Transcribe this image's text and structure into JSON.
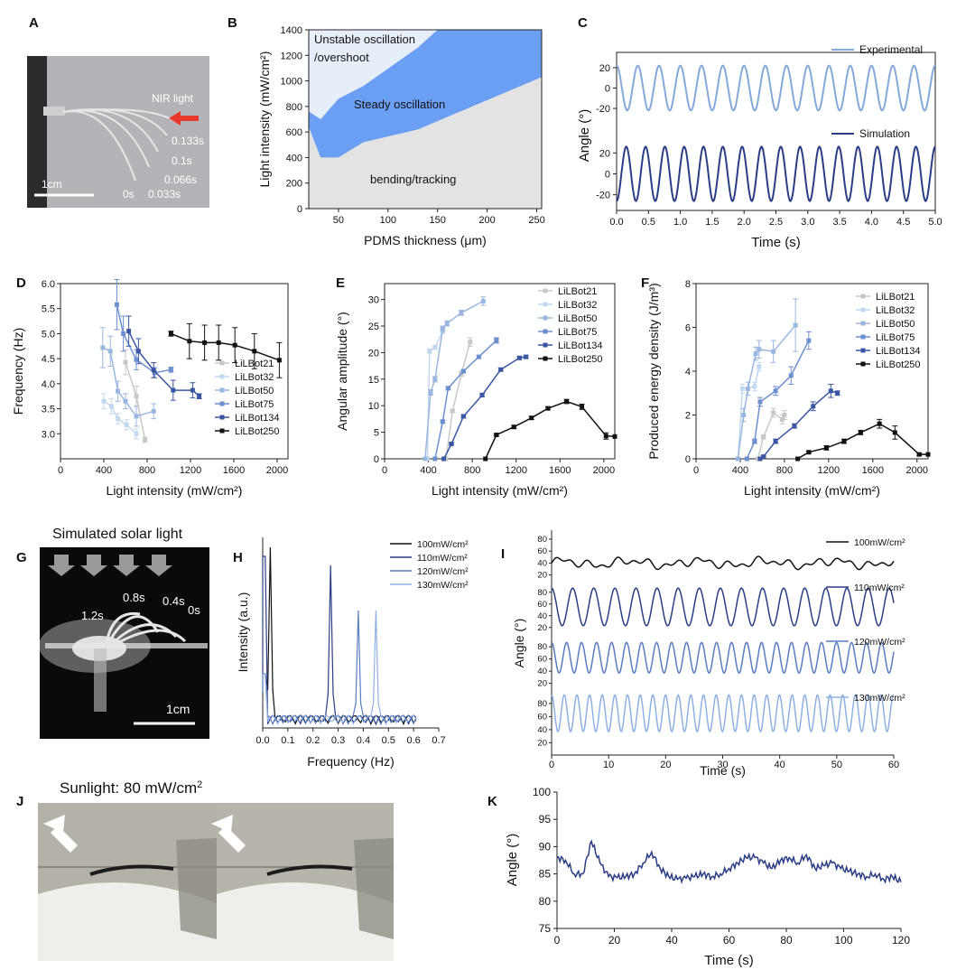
{
  "panel_letters": {
    "A": "A",
    "B": "B",
    "C": "C",
    "D": "D",
    "E": "E",
    "F": "F",
    "G": "G",
    "H": "H",
    "I": "I",
    "J": "J",
    "K": "K"
  },
  "photo_a": {
    "nir_label": "NIR light",
    "times": [
      "0.133s",
      "0.1s",
      "0.066s",
      "0s",
      "0.033s"
    ],
    "scale": "1cm"
  },
  "photo_g": {
    "title": "Simulated solar light",
    "times": [
      "1.2s",
      "0.8s",
      "0.4s",
      "0s"
    ],
    "scale": "1cm"
  },
  "photo_j": {
    "title": "Sunlight: 80 mW/cm2"
  },
  "colors": {
    "c21": "#c8c8c8",
    "c32": "#c2d8ef",
    "c50": "#9ab7e0",
    "c75": "#6b8fcf",
    "c134": "#3a56a2",
    "c250": "#111111",
    "steady": "#6b9ff3",
    "unstable": "#e6eef9",
    "bending": "#e3e3e3",
    "expLine": "#85a9d8",
    "simLine": "#2b3d84"
  },
  "chart_data": [
    {
      "id": "B",
      "type": "area",
      "xlabel": "PDMS thickness (μm)",
      "ylabel": "Light intensity (mW/cm²)",
      "xlim": [
        20,
        255
      ],
      "ylim": [
        0,
        1400
      ],
      "xticks": [
        "50",
        "100",
        "150",
        "200",
        "250"
      ],
      "yticks": [
        "0",
        "200",
        "400",
        "600",
        "800",
        "1000",
        "1200",
        "1400"
      ],
      "region_labels": [
        "Unstable oscillation",
        "/overshoot",
        "Steady oscillation",
        "bending/tracking"
      ],
      "regions": {
        "steady_upper": [
          [
            20,
            760
          ],
          [
            32,
            700
          ],
          [
            50,
            860
          ],
          [
            75,
            960
          ],
          [
            130,
            1260
          ],
          [
            150,
            1400
          ],
          [
            255,
            1400
          ]
        ],
        "steady_lower": [
          [
            20,
            640
          ],
          [
            32,
            400
          ],
          [
            50,
            400
          ],
          [
            75,
            520
          ],
          [
            130,
            620
          ],
          [
            255,
            1030
          ]
        ]
      }
    },
    {
      "id": "C",
      "type": "line",
      "xlabel": "Time (s)",
      "ylabel": "Angle (°)",
      "xlim": [
        0,
        5
      ],
      "xticks": [
        "0.0",
        "0.5",
        "1.0",
        "1.5",
        "2.0",
        "2.5",
        "3.0",
        "3.5",
        "4.0",
        "4.5",
        "5.0"
      ],
      "top_yticks": [
        "20",
        "0",
        "-20"
      ],
      "bottom_yticks": [
        "20",
        "0",
        "-20"
      ],
      "series": [
        {
          "name": "Experimental",
          "amplitude": 22,
          "frequency_hz": 3.0
        },
        {
          "name": "Simulation",
          "amplitude": 26,
          "frequency_hz": 3.3
        }
      ]
    },
    {
      "id": "D",
      "type": "line",
      "xlabel": "Light intensity (mW/cm²)",
      "ylabel": "Frequency (Hz)",
      "xlim": [
        0,
        2100
      ],
      "ylim": [
        2.5,
        6.0
      ],
      "xticks": [
        "0",
        "400",
        "800",
        "1200",
        "1600",
        "2000"
      ],
      "yticks": [
        "3.0",
        "3.5",
        "4.0",
        "4.5",
        "5.0",
        "5.5",
        "6.0"
      ],
      "legend": [
        "LiLBot21",
        "LiLBot32",
        "LiLBot50",
        "LiLBot75",
        "LiLBot134",
        "LiLBot250"
      ],
      "series": [
        {
          "name": "LiLBot21",
          "x": [
            600,
            700,
            780
          ],
          "y": [
            4.43,
            3.75,
            2.88
          ],
          "err": [
            0.25,
            0.2,
            0.05
          ]
        },
        {
          "name": "LiLBot32",
          "x": [
            400,
            470,
            530,
            610,
            700
          ],
          "y": [
            3.65,
            3.55,
            3.3,
            3.18,
            3.0
          ],
          "err": [
            0.15,
            0.15,
            0.1,
            0.1,
            0.1
          ]
        },
        {
          "name": "LiLBot50",
          "x": [
            390,
            460,
            530,
            600,
            700,
            860
          ],
          "y": [
            4.72,
            4.65,
            3.85,
            3.65,
            3.35,
            3.45
          ],
          "err": [
            0.4,
            0.3,
            0.2,
            0.15,
            0.2,
            0.15
          ]
        },
        {
          "name": "LiLBot75",
          "x": [
            520,
            580,
            700,
            870,
            1020
          ],
          "y": [
            5.58,
            5.0,
            4.48,
            4.22,
            4.28
          ],
          "err": [
            0.5,
            0.35,
            0.2,
            0.1,
            0.05
          ]
        },
        {
          "name": "LiLBot134",
          "x": [
            630,
            720,
            860,
            1040,
            1220,
            1280
          ],
          "y": [
            5.05,
            4.65,
            4.27,
            3.87,
            3.87,
            3.75
          ],
          "err": [
            0.3,
            0.25,
            0.15,
            0.2,
            0.15,
            0.05
          ]
        },
        {
          "name": "LiLBot250",
          "x": [
            1020,
            1190,
            1330,
            1460,
            1610,
            1790,
            2020
          ],
          "y": [
            5.0,
            4.85,
            4.82,
            4.82,
            4.77,
            4.65,
            4.47
          ],
          "err": [
            0.05,
            0.35,
            0.35,
            0.35,
            0.35,
            0.35,
            0.35
          ]
        }
      ]
    },
    {
      "id": "E",
      "type": "line",
      "xlabel": "Light intensity (mW/cm²)",
      "ylabel": "Angular amplitude (°)",
      "xlim": [
        0,
        2100
      ],
      "ylim": [
        0,
        33
      ],
      "xticks": [
        "0",
        "400",
        "800",
        "1200",
        "1600",
        "2000"
      ],
      "yticks": [
        "0",
        "5",
        "10",
        "15",
        "20",
        "25",
        "30"
      ],
      "legend": [
        "LiLBot21",
        "LiLBot32",
        "LiLBot50",
        "LiLBot75",
        "LiLBot134",
        "LiLBot250"
      ],
      "series": [
        {
          "name": "LiLBot21",
          "x": [
            560,
            620,
            700,
            780
          ],
          "y": [
            0,
            9,
            16,
            22
          ],
          "err": [
            0,
            0.3,
            0.5,
            0.8
          ]
        },
        {
          "name": "LiLBot32",
          "x": [
            390,
            410,
            460,
            530
          ],
          "y": [
            0,
            20.3,
            21,
            24
          ],
          "err": [
            0,
            0.4,
            0.4,
            0.4
          ]
        },
        {
          "name": "LiLBot50",
          "x": [
            370,
            420,
            460,
            530,
            570,
            700,
            900
          ],
          "y": [
            0,
            12.5,
            15,
            24.5,
            25.5,
            27.5,
            29.7
          ],
          "err": [
            0,
            0.5,
            0.5,
            0.5,
            0.5,
            0.5,
            0.8
          ]
        },
        {
          "name": "LiLBot75",
          "x": [
            460,
            530,
            580,
            720,
            860,
            1020
          ],
          "y": [
            0,
            7,
            13.3,
            16.5,
            19.2,
            22.3
          ],
          "err": [
            0,
            0.3,
            0.3,
            0.3,
            0.3,
            0.5
          ]
        },
        {
          "name": "LiLBot134",
          "x": [
            540,
            610,
            720,
            890,
            1060,
            1230,
            1290
          ],
          "y": [
            0,
            2.8,
            8,
            12,
            16.8,
            19,
            19.2
          ],
          "err": [
            0,
            0.2,
            0.3,
            0.3,
            0.3,
            0.3,
            0.3
          ]
        },
        {
          "name": "LiLBot250",
          "x": [
            920,
            1020,
            1180,
            1340,
            1490,
            1660,
            1800,
            2020,
            2100
          ],
          "y": [
            0,
            4.5,
            6,
            7.7,
            9.5,
            10.8,
            9.8,
            4.3,
            4.2
          ],
          "err": [
            0,
            0.2,
            0.3,
            0.3,
            0.3,
            0.4,
            0.5,
            0.6,
            0
          ]
        }
      ]
    },
    {
      "id": "F",
      "type": "line",
      "xlabel": "Light intensity (mW/cm²)",
      "ylabel": "Produced energy density (J/m³)",
      "xlim": [
        0,
        2100
      ],
      "ylim": [
        0,
        8
      ],
      "xticks": [
        "0",
        "400",
        "800",
        "1200",
        "1600",
        "2000"
      ],
      "yticks": [
        "0",
        "2",
        "4",
        "6",
        "8"
      ],
      "legend": [
        "LiLBot21",
        "LiLBot32",
        "LiLBot50",
        "LiLBot75",
        "LiLBot134",
        "LiLBot250"
      ],
      "series": [
        {
          "name": "LiLBot21",
          "x": [
            560,
            610,
            700,
            780,
            800
          ],
          "y": [
            0,
            1.0,
            2.1,
            1.8,
            2.0
          ],
          "err": [
            0,
            0.1,
            0.2,
            0.2,
            0.2
          ]
        },
        {
          "name": "LiLBot32",
          "x": [
            380,
            420,
            530,
            570
          ],
          "y": [
            0,
            3.2,
            3.3,
            4.2
          ],
          "err": [
            0,
            0.2,
            0.2,
            0.2
          ]
        },
        {
          "name": "LiLBot50",
          "x": [
            380,
            430,
            470,
            540,
            570,
            700,
            900
          ],
          "y": [
            0,
            2.0,
            3.2,
            4.8,
            5.0,
            4.9,
            6.1
          ],
          "err": [
            0,
            0.3,
            0.3,
            0.3,
            0.4,
            0.5,
            1.2
          ]
        },
        {
          "name": "LiLBot75",
          "x": [
            460,
            530,
            580,
            720,
            860,
            1020
          ],
          "y": [
            0,
            0.8,
            2.6,
            3.1,
            3.8,
            5.4
          ],
          "err": [
            0,
            0.1,
            0.2,
            0.2,
            0.4,
            0.4
          ]
        },
        {
          "name": "LiLBot134",
          "x": [
            580,
            610,
            720,
            890,
            1060,
            1220,
            1280
          ],
          "y": [
            0,
            0.1,
            0.8,
            1.5,
            2.4,
            3.1,
            3.0
          ],
          "err": [
            0,
            0.05,
            0.1,
            0.1,
            0.2,
            0.3,
            0.1
          ]
        },
        {
          "name": "LiLBot250",
          "x": [
            920,
            1020,
            1180,
            1340,
            1490,
            1660,
            1800,
            2020,
            2100
          ],
          "y": [
            0,
            0.3,
            0.5,
            0.8,
            1.2,
            1.6,
            1.2,
            0.2,
            0.2
          ],
          "err": [
            0,
            0.05,
            0.1,
            0.1,
            0.1,
            0.2,
            0.3,
            0.05,
            0
          ]
        }
      ]
    },
    {
      "id": "H",
      "type": "line",
      "xlabel": "Frequency (Hz)",
      "ylabel": "Intensity (a.u.)",
      "xlim": [
        0,
        0.7
      ],
      "xticks": [
        "0.0",
        "0.1",
        "0.2",
        "0.3",
        "0.4",
        "0.5",
        "0.6",
        "0.7"
      ],
      "legend": [
        "100mW/cm²",
        "110mW/cm²",
        "120mW/cm²",
        "130mW/cm²"
      ],
      "series": [
        {
          "name": "100mW/cm²",
          "peak_hz": 0.03
        },
        {
          "name": "110mW/cm²",
          "peak_hz": 0.27
        },
        {
          "name": "120mW/cm²",
          "peak_hz": 0.38
        },
        {
          "name": "130mW/cm²",
          "peak_hz": 0.45
        }
      ]
    },
    {
      "id": "I",
      "type": "line",
      "xlabel": "Time (s)",
      "ylabel": "Angle (°)",
      "xlim": [
        0,
        60
      ],
      "xticks": [
        "0",
        "10",
        "20",
        "30",
        "40",
        "50",
        "60"
      ],
      "yticks": [
        "20",
        "40",
        "60",
        "80"
      ],
      "series": [
        {
          "name": "100mW/cm²",
          "mean": 40,
          "amplitude": 8
        },
        {
          "name": "110mW/cm²",
          "mean": 55,
          "amplitude": 32,
          "period_s": 3.7
        },
        {
          "name": "120mW/cm²",
          "mean": 62,
          "amplitude": 25,
          "period_s": 2.63
        },
        {
          "name": "130mW/cm²",
          "mean": 65,
          "amplitude": 28,
          "period_s": 2.22
        }
      ]
    },
    {
      "id": "K",
      "type": "line",
      "xlabel": "Time (s)",
      "ylabel": "Angle (°)",
      "xlim": [
        0,
        120
      ],
      "ylim": [
        75,
        100
      ],
      "xticks": [
        "0",
        "20",
        "40",
        "60",
        "80",
        "100",
        "120"
      ],
      "yticks": [
        "75",
        "80",
        "85",
        "90",
        "95",
        "100"
      ],
      "series": [
        {
          "name": "",
          "x": [
            0,
            3,
            6,
            9,
            12,
            15,
            18,
            21,
            24,
            27,
            30,
            33,
            36,
            39,
            42,
            45,
            48,
            51,
            54,
            57,
            60,
            63,
            66,
            69,
            72,
            75,
            78,
            81,
            84,
            87,
            90,
            93,
            96,
            99,
            102,
            105,
            108,
            111,
            114,
            117,
            120
          ],
          "y": [
            88,
            87.5,
            85,
            85,
            91,
            87,
            84.5,
            84.3,
            84.5,
            85,
            87,
            89,
            86,
            84.5,
            84,
            84.2,
            84.5,
            85,
            84.5,
            85,
            86,
            87,
            88,
            88,
            87,
            86,
            87.5,
            88,
            87,
            88.5,
            86,
            86.5,
            87,
            86,
            85.5,
            85,
            84.5,
            85,
            84,
            84.5,
            83.5
          ]
        }
      ]
    }
  ]
}
